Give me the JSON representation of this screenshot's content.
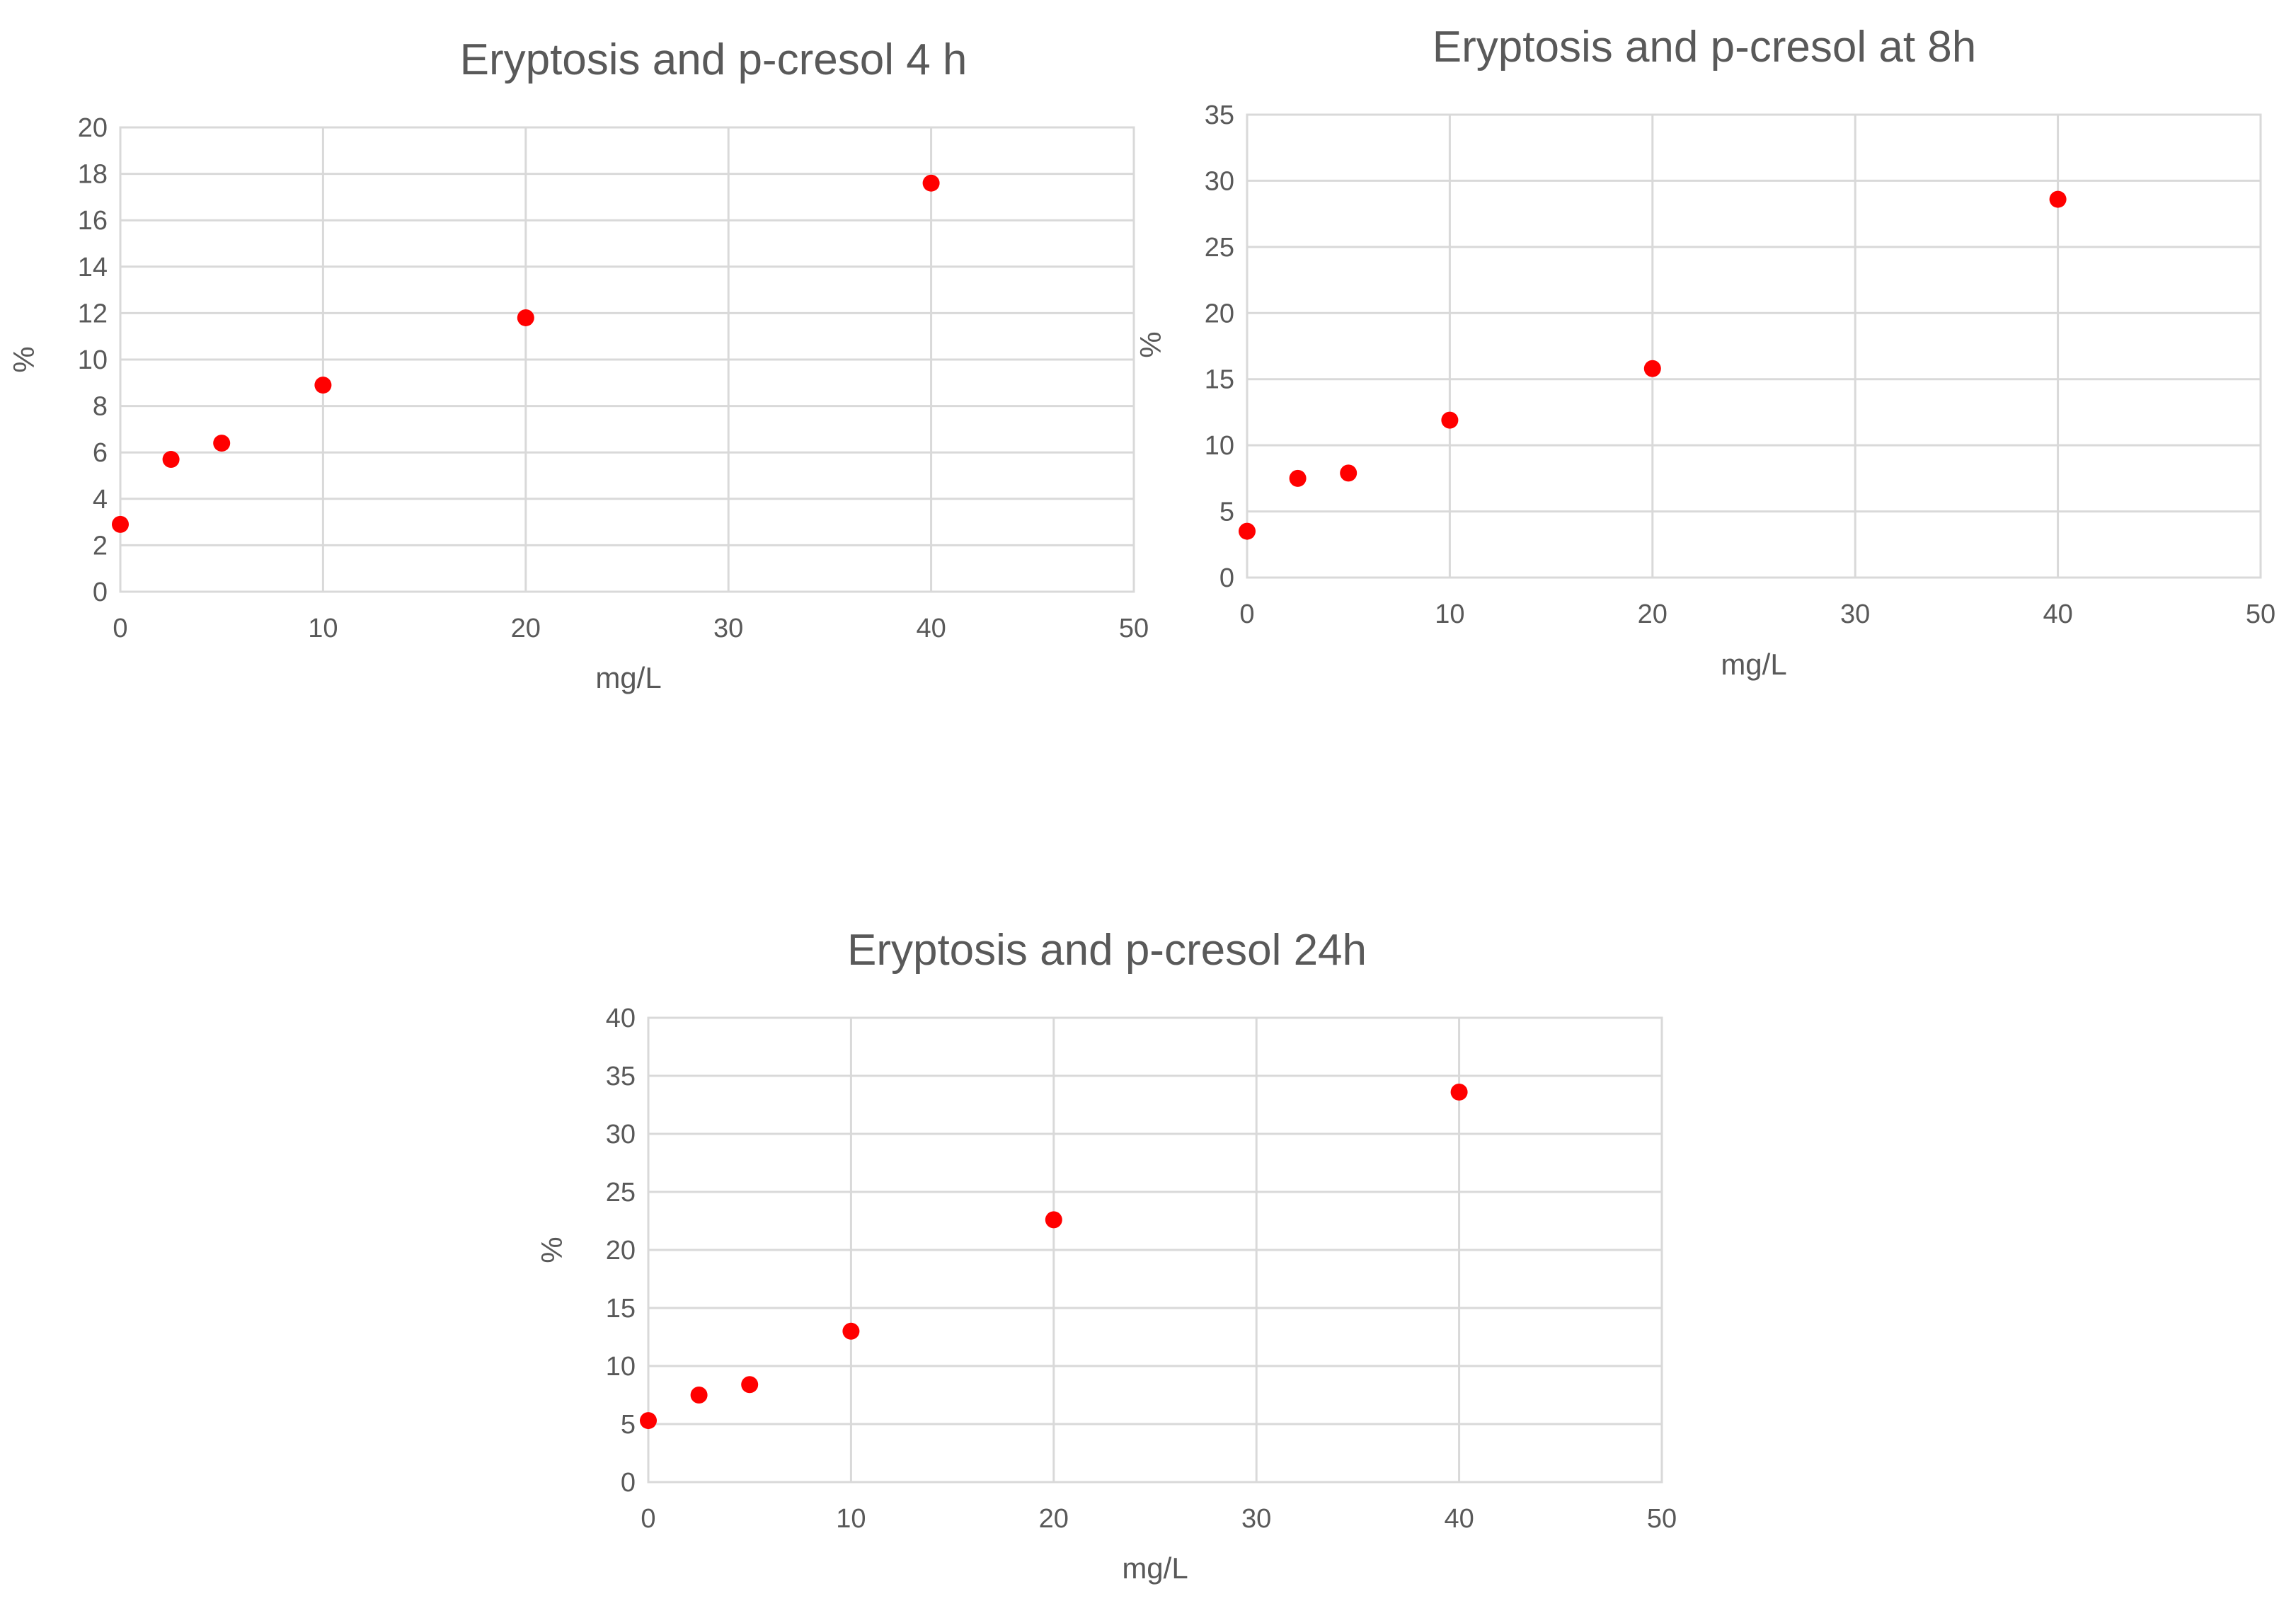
{
  "chart_data": [
    {
      "type": "scatter",
      "title": "Eryptosis and p-cresol 4 h",
      "xlabel": "mg/L",
      "ylabel": "%",
      "xlim": [
        0,
        50
      ],
      "ylim": [
        0,
        20
      ],
      "xticks": [
        0,
        10,
        20,
        30,
        40,
        50
      ],
      "yticks": [
        0,
        2,
        4,
        6,
        8,
        10,
        12,
        14,
        16,
        18,
        20
      ],
      "grid": true,
      "marker_color": "#ff0000",
      "series": [
        {
          "x": [
            0,
            2.5,
            5,
            10,
            20,
            40
          ],
          "y": [
            2.9,
            5.7,
            6.4,
            8.9,
            11.8,
            17.6
          ]
        }
      ]
    },
    {
      "type": "scatter",
      "title": "Eryptosis and p-cresol at 8h",
      "xlabel": "mg/L",
      "ylabel": "%",
      "xlim": [
        0,
        50
      ],
      "ylim": [
        0,
        35
      ],
      "xticks": [
        0,
        10,
        20,
        30,
        40,
        50
      ],
      "yticks": [
        0,
        5,
        10,
        15,
        20,
        25,
        30,
        35
      ],
      "grid": true,
      "marker_color": "#ff0000",
      "series": [
        {
          "x": [
            0,
            2.5,
            5,
            10,
            20,
            40
          ],
          "y": [
            3.5,
            7.5,
            7.9,
            11.9,
            15.8,
            28.6
          ]
        }
      ]
    },
    {
      "type": "scatter",
      "title": "Eryptosis and p-cresol 24h",
      "xlabel": "mg/L",
      "ylabel": "%",
      "xlim": [
        0,
        50
      ],
      "ylim": [
        0,
        40
      ],
      "xticks": [
        0,
        10,
        20,
        30,
        40,
        50
      ],
      "yticks": [
        0,
        5,
        10,
        15,
        20,
        25,
        30,
        35,
        40
      ],
      "grid": true,
      "marker_color": "#ff0000",
      "series": [
        {
          "x": [
            0,
            2.5,
            5,
            10,
            20,
            40
          ],
          "y": [
            5.3,
            7.5,
            8.4,
            13.0,
            22.6,
            33.6
          ]
        }
      ]
    }
  ]
}
